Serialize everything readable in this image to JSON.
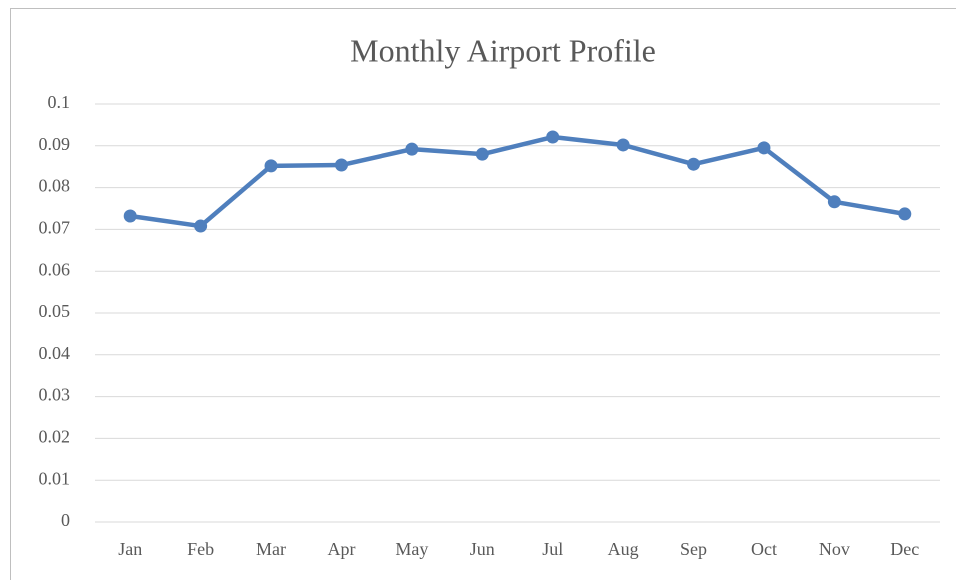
{
  "chart_data": {
    "type": "line",
    "title": "Monthly Airport Profile",
    "categories": [
      "Jan",
      "Feb",
      "Mar",
      "Apr",
      "May",
      "Jun",
      "Jul",
      "Aug",
      "Sep",
      "Oct",
      "Nov",
      "Dec"
    ],
    "series": [
      {
        "name": "Monthly Airport Profile",
        "color": "#4f7fbd",
        "values": [
          0.0732,
          0.0708,
          0.0852,
          0.0854,
          0.0892,
          0.088,
          0.0921,
          0.0902,
          0.0856,
          0.0895,
          0.0766,
          0.0737
        ]
      }
    ],
    "ylim": [
      0,
      0.1
    ],
    "yticks": [
      0,
      0.01,
      0.02,
      0.03,
      0.04,
      0.05,
      0.06,
      0.07,
      0.08,
      0.09,
      0.1
    ],
    "grid": true
  }
}
